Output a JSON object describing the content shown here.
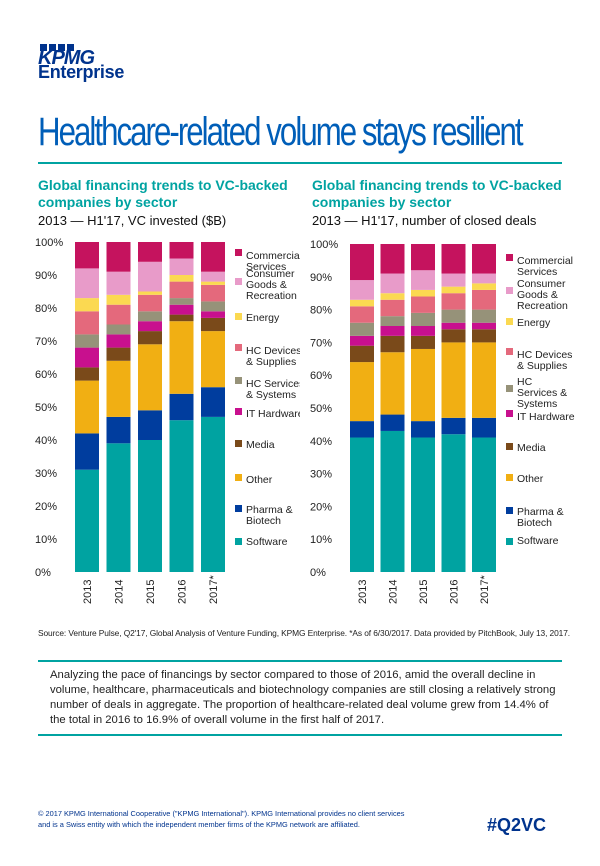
{
  "brand": {
    "logo_text": "KPMG",
    "sub": "Enterprise"
  },
  "title": "Healthcare-related volume stays resilient",
  "colors": {
    "Commercial Services": "#C5135E",
    "Consumer Goods & Recreation": "#E89BC9",
    "Energy": "#FBD951",
    "HC Devices & Supplies": "#E4697C",
    "HC Services & Systems": "#969279",
    "IT Hardware": "#C8108E",
    "Media": "#7A4A1A",
    "Other": "#F1AF13",
    "Pharma & Biotech": "#003D9E",
    "Software": "#00A3A1"
  },
  "chart_data": [
    {
      "type": "bar",
      "stacked": true,
      "title": "Global financing trends to VC-backed companies by sector",
      "subtitle": "2013 — H1'17, VC invested ($B)",
      "categories": [
        "2013",
        "2014",
        "2015",
        "2016",
        "2017*"
      ],
      "ylim": [
        0,
        100
      ],
      "yticks": [
        "0%",
        "10%",
        "20%",
        "30%",
        "40%",
        "50%",
        "60%",
        "70%",
        "80%",
        "90%",
        "100%"
      ],
      "series": [
        {
          "name": "Software",
          "values": [
            31,
            39,
            40,
            46,
            47
          ]
        },
        {
          "name": "Pharma & Biotech",
          "values": [
            11,
            8,
            9,
            8,
            9
          ]
        },
        {
          "name": "Other",
          "values": [
            16,
            17,
            20,
            22,
            17
          ]
        },
        {
          "name": "Media",
          "values": [
            4,
            4,
            4,
            2,
            4
          ]
        },
        {
          "name": "IT Hardware",
          "values": [
            6,
            4,
            3,
            3,
            2
          ]
        },
        {
          "name": "HC Services & Systems",
          "values": [
            4,
            3,
            3,
            2,
            3
          ]
        },
        {
          "name": "HC Devices & Supplies",
          "values": [
            7,
            6,
            5,
            5,
            5
          ]
        },
        {
          "name": "Energy",
          "values": [
            4,
            3,
            1,
            2,
            1
          ]
        },
        {
          "name": "Consumer Goods & Recreation",
          "values": [
            9,
            7,
            9,
            5,
            3
          ]
        },
        {
          "name": "Commercial Services",
          "values": [
            8,
            9,
            6,
            5,
            9
          ]
        }
      ],
      "legend": [
        "Commercial Services",
        "Consumer Goods & Recreation",
        "Energy",
        "HC Devices & Supplies",
        "HC Services & Systems",
        "IT Hardware",
        "Media",
        "Other",
        "Pharma & Biotech",
        "Software"
      ]
    },
    {
      "type": "bar",
      "stacked": true,
      "title": "Global financing trends to VC-backed companies by sector",
      "subtitle": "2013 — H1'17, number of closed deals",
      "categories": [
        "2013",
        "2014",
        "2015",
        "2016",
        "2017*"
      ],
      "ylim": [
        0,
        100
      ],
      "yticks": [
        "0%",
        "10%",
        "20%",
        "30%",
        "40%",
        "50%",
        "60%",
        "70%",
        "80%",
        "90%",
        "100%"
      ],
      "series": [
        {
          "name": "Software",
          "values": [
            41,
            43,
            41,
            42,
            41
          ]
        },
        {
          "name": "Pharma & Biotech",
          "values": [
            5,
            5,
            5,
            5,
            6
          ]
        },
        {
          "name": "Other",
          "values": [
            18,
            19,
            22,
            23,
            23
          ]
        },
        {
          "name": "Media",
          "values": [
            5,
            5,
            4,
            4,
            4
          ]
        },
        {
          "name": "IT Hardware",
          "values": [
            3,
            3,
            3,
            2,
            2
          ]
        },
        {
          "name": "HC Services & Systems",
          "values": [
            4,
            3,
            4,
            4,
            4
          ]
        },
        {
          "name": "HC Devices & Supplies",
          "values": [
            5,
            5,
            5,
            5,
            6
          ]
        },
        {
          "name": "Energy",
          "values": [
            2,
            2,
            2,
            2,
            2
          ]
        },
        {
          "name": "Consumer Goods & Recreation",
          "values": [
            6,
            6,
            6,
            4,
            3
          ]
        },
        {
          "name": "Commercial Services",
          "values": [
            11,
            9,
            8,
            9,
            9
          ]
        }
      ],
      "legend": [
        "Commercial Services",
        "Consumer Goods & Recreation",
        "Energy",
        "HC Devices & Supplies",
        "HC Services & Systems",
        "IT Hardware",
        "Media",
        "Other",
        "Pharma & Biotech",
        "Software"
      ]
    }
  ],
  "source": "Source: Venture Pulse, Q2'17, Global Analysis of Venture Funding, KPMG Enterprise. *As of 6/30/2017. Data provided by PitchBook, July 13, 2017.",
  "body_text": "Analyzing the pace of financings by sector compared to those of 2016, amid the overall decline in volume, healthcare, pharmaceuticals and biotechnology companies are still closing a relatively strong number of deals in aggregate. The proportion of healthcare-related deal volume grew from 14.4% of the total in 2016 to 16.9% of overall volume in the first half of 2017.",
  "footer": "© 2017 KPMG International Cooperative (\"KPMG International\"). KPMG International provides no client services and is a Swiss entity with which the independent member firms of the KPMG network are affiliated.",
  "hashtag": "#Q2VC"
}
